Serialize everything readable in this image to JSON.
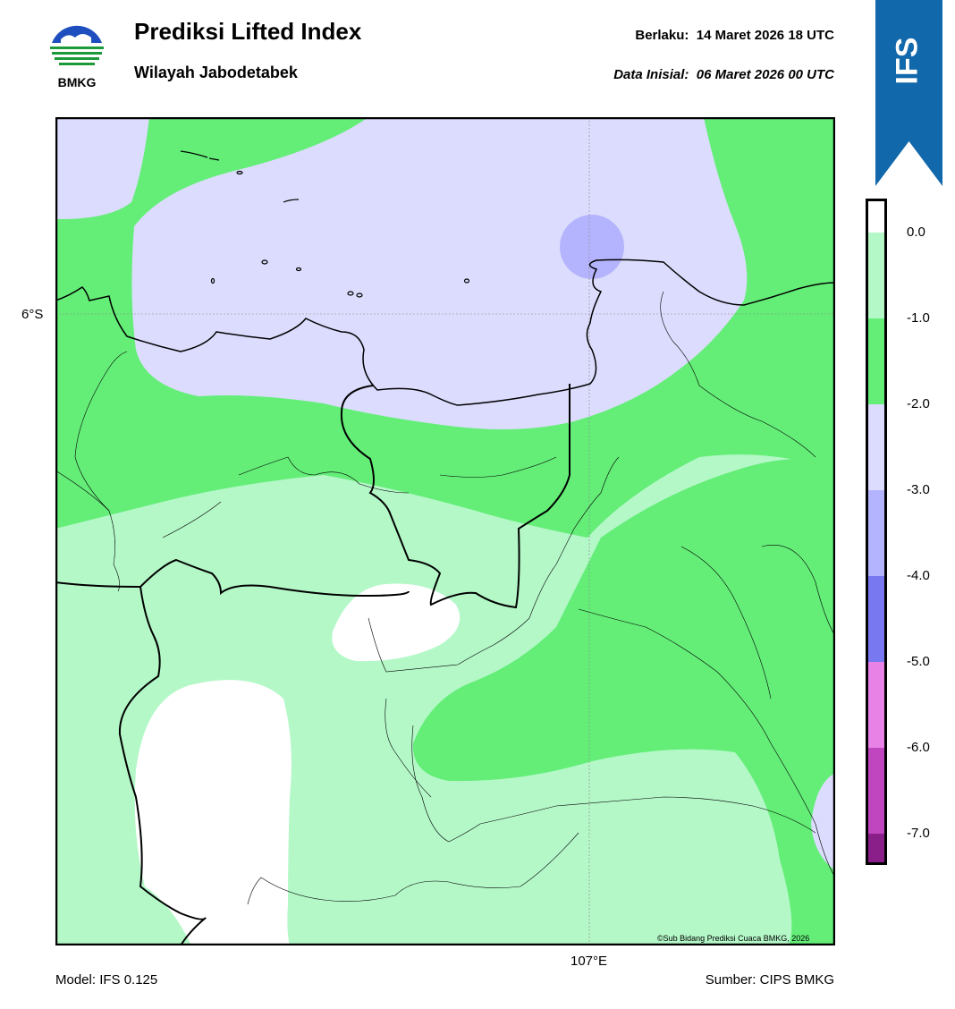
{
  "header": {
    "title": "Prediksi Lifted Index",
    "subtitle": "Wilayah Jabodetabek",
    "valid_label": "Berlaku:",
    "valid_value": "14 Maret 2026 18 UTC",
    "init_label": "Data Inisial:",
    "init_value": "06 Maret 2026 00 UTC"
  },
  "logo": {
    "text": "BMKG",
    "colors": {
      "blue": "#1f4fbf",
      "green": "#1c9a3a"
    }
  },
  "badge": {
    "text": "IFS",
    "color": "#1168ab"
  },
  "map": {
    "lat_label": "6°S",
    "lon_label": "107°E",
    "credit": "©Sub Bidang Prediksi Cuaca BMKG, 2026"
  },
  "colorbar": {
    "ticks": [
      "0.0",
      "-1.0",
      "-2.0",
      "-3.0",
      "-4.0",
      "-5.0",
      "-6.0",
      "-7.0"
    ],
    "colors": {
      "above_0": "#ffffff",
      "0_to_-1": "#b4f8c8",
      "-1_to_-2": "#64ee78",
      "-2_to_-3": "#dcdcfe",
      "-3_to_-4": "#b4b4fe",
      "-4_to_-5": "#7878f0",
      "-5_to_-6": "#e882e6",
      "-6_to_-7": "#c046c0",
      "below_-7": "#8a1f8a"
    }
  },
  "footer": {
    "model": "Model: IFS 0.125",
    "source": "Sumber: CIPS BMKG"
  }
}
